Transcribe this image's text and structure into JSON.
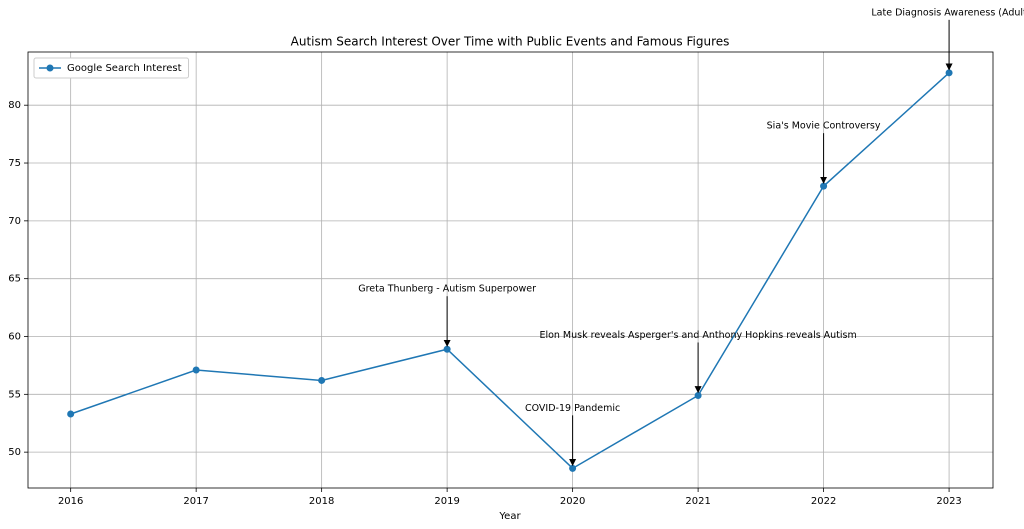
{
  "chart_data": {
    "type": "line",
    "title": "Autism Search Interest Over Time with Public Events and Famous Figures",
    "x_label": "Year",
    "x": [
      2016,
      2017,
      2018,
      2019,
      2020,
      2021,
      2022,
      2023
    ],
    "series": [
      {
        "name": "Google Search Interest",
        "color": "#1f77b4",
        "values": [
          53.3,
          57.1,
          56.2,
          58.9,
          48.6,
          54.9,
          73.0,
          82.8
        ]
      }
    ],
    "xlim": [
      2015.66,
      2023.35
    ],
    "xticks": [
      2016,
      2017,
      2018,
      2019,
      2020,
      2021,
      2022,
      2023
    ],
    "ylim": [
      46.9,
      84.6
    ],
    "yticks": [
      50,
      55,
      60,
      65,
      70,
      75,
      80
    ],
    "grid": true,
    "legend": "upper-left",
    "annotations": [
      {
        "text": "Greta Thunberg - Autism Superpower",
        "x": 2019
      },
      {
        "text": "COVID-19 Pandemic",
        "x": 2020
      },
      {
        "text": "Elon Musk reveals Asperger's and Anthony Hopkins reveals Autism",
        "x": 2021
      },
      {
        "text": "Sia's Movie Controversy",
        "x": 2022
      },
      {
        "text": "Late Diagnosis Awareness (Adult",
        "x": 2023
      }
    ]
  }
}
